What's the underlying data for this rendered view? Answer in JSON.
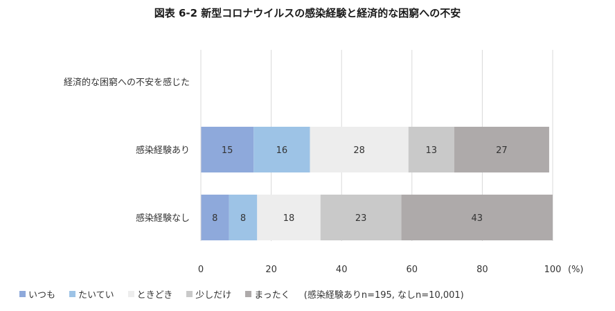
{
  "chart_data": {
    "type": "bar",
    "orientation": "horizontal",
    "stacked": true,
    "title": "図表 6-2 新型コロナウイルスの感染経験と経済的な困窮への不安",
    "ylabel": "経済的な困窮への不安を感じた",
    "categories": [
      "感染経験あり",
      "感染経験なし"
    ],
    "series": [
      {
        "name": "いつも",
        "color": "#8EA9DB",
        "values": [
          15,
          8
        ]
      },
      {
        "name": "たいてい",
        "color": "#9DC3E6",
        "values": [
          16,
          8
        ]
      },
      {
        "name": "ときどき",
        "color": "#EDEDED",
        "values": [
          28,
          18
        ]
      },
      {
        "name": "少しだけ",
        "color": "#C9C9C9",
        "values": [
          13,
          23
        ]
      },
      {
        "name": "まったく",
        "color": "#AEAAAA",
        "values": [
          27,
          43
        ]
      }
    ],
    "xlim": [
      0,
      100
    ],
    "xticks": [
      "0",
      "20",
      "40",
      "60",
      "80",
      "100"
    ],
    "x_unit": "(%)",
    "grid": true,
    "legend_position": "bottom",
    "note": "(感染経験ありn=195, なしn=10,001)"
  }
}
